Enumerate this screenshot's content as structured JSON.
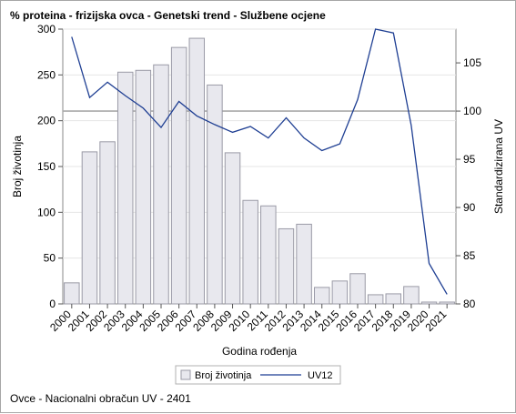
{
  "title": "% proteina - frizijska ovca - Genetski trend - Službene ocjene",
  "footnote": "Ovce - Nacionalni obračun UV - 2401",
  "colors": {
    "bar_fill": "#e8e8ee",
    "bar_stroke": "#9a9aa6",
    "line": "#1f3f93",
    "reference_line": "#a9a9a9",
    "grid": "#e6e6e6"
  },
  "chart_data": {
    "type": "bar",
    "title": "% proteina - frizijska ovca - Genetski trend - Službene ocjene",
    "xlabel": "Godina rođenja",
    "ylabel": "Broj životinja",
    "y2label": "Standardizirana UV",
    "categories": [
      "2000",
      "2001",
      "2002",
      "2003",
      "2004",
      "2005",
      "2006",
      "2007",
      "2008",
      "2009",
      "2010",
      "2011",
      "2012",
      "2013",
      "2014",
      "2015",
      "2016",
      "2017",
      "2018",
      "2019",
      "2020",
      "2021"
    ],
    "ylim": [
      0,
      300
    ],
    "yticks": [
      0,
      50,
      100,
      150,
      200,
      250,
      300
    ],
    "y2lim": [
      80,
      108.5
    ],
    "y2ticks": [
      80,
      85,
      90,
      95,
      100,
      105
    ],
    "reference_line_y2": 100,
    "grid": true,
    "legend_position": "bottom",
    "series": [
      {
        "name": "Broj životinja",
        "type": "bar",
        "axis": "left",
        "values": [
          23,
          166,
          177,
          253,
          255,
          261,
          280,
          290,
          239,
          165,
          113,
          107,
          82,
          87,
          18,
          25,
          33,
          10,
          11,
          19,
          2,
          2
        ]
      },
      {
        "name": "UV12",
        "type": "line",
        "axis": "right",
        "values": [
          107.7,
          101.4,
          103.0,
          101.6,
          100.3,
          98.3,
          101.0,
          99.5,
          98.6,
          97.8,
          98.4,
          97.2,
          99.3,
          97.2,
          95.9,
          96.6,
          101.2,
          108.5,
          108.1,
          98.5,
          84.2,
          81.0
        ]
      }
    ]
  }
}
